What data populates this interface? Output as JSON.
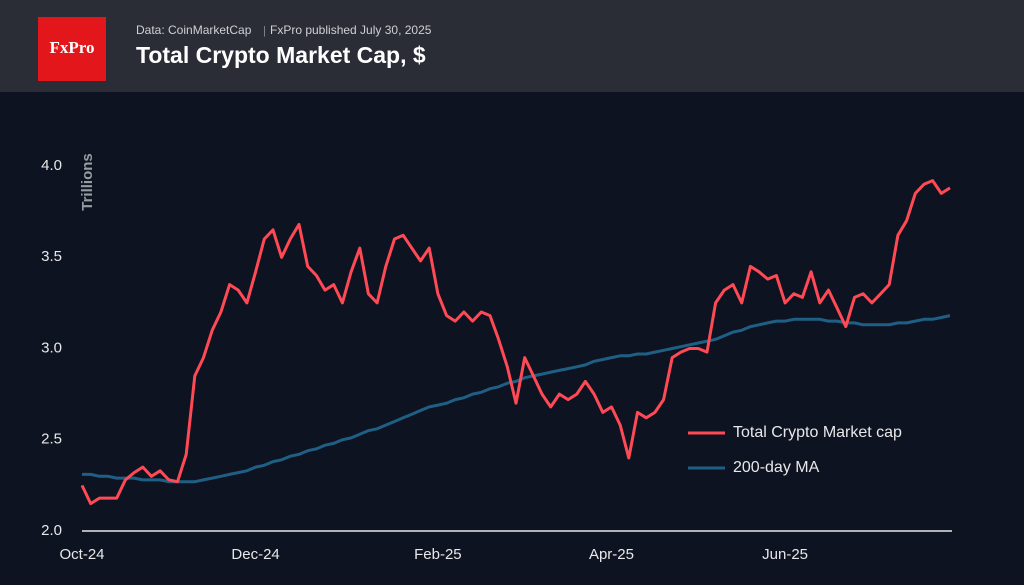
{
  "logo": "FxPro",
  "source": "Data: CoinMarketCap",
  "published": "FxPro published July 30, 2025",
  "chart_data": {
    "type": "line",
    "title": "Total Crypto Market Cap, $",
    "y_label": "Trillions",
    "categories": [
      "Oct-24",
      null,
      null,
      null,
      null,
      null,
      null,
      null,
      null,
      null,
      null,
      null,
      null,
      null,
      null,
      null,
      null,
      null,
      null,
      null,
      "Dec-24",
      null,
      null,
      null,
      null,
      null,
      null,
      null,
      null,
      null,
      null,
      null,
      null,
      null,
      null,
      null,
      null,
      null,
      null,
      null,
      null,
      "Feb-25",
      null,
      null,
      null,
      null,
      null,
      null,
      null,
      null,
      null,
      null,
      null,
      null,
      null,
      null,
      null,
      null,
      null,
      null,
      null,
      "Apr-25",
      null,
      null,
      null,
      null,
      null,
      null,
      null,
      null,
      null,
      null,
      null,
      null,
      null,
      null,
      null,
      null,
      null,
      null,
      null,
      "Jun-25",
      null,
      null,
      null,
      null,
      null,
      null,
      null,
      null,
      null,
      null,
      null,
      null,
      null,
      null,
      null,
      null,
      null,
      null,
      null
    ],
    "series": [
      {
        "name": "Total Crypto Market cap",
        "color": "#ff4a55",
        "values": [
          2.25,
          2.15,
          2.18,
          2.18,
          2.18,
          2.28,
          2.32,
          2.35,
          2.3,
          2.33,
          2.28,
          2.27,
          2.42,
          2.85,
          2.95,
          3.1,
          3.2,
          3.35,
          3.32,
          3.25,
          3.42,
          3.6,
          3.65,
          3.5,
          3.6,
          3.68,
          3.45,
          3.4,
          3.32,
          3.35,
          3.25,
          3.42,
          3.55,
          3.3,
          3.25,
          3.45,
          3.6,
          3.62,
          3.55,
          3.48,
          3.55,
          3.3,
          3.18,
          3.15,
          3.2,
          3.15,
          3.2,
          3.18,
          3.05,
          2.9,
          2.7,
          2.95,
          2.85,
          2.75,
          2.68,
          2.75,
          2.72,
          2.75,
          2.82,
          2.75,
          2.65,
          2.68,
          2.58,
          2.4,
          2.65,
          2.62,
          2.65,
          2.72,
          2.95,
          2.98,
          3.0,
          3.0,
          2.98,
          3.25,
          3.32,
          3.35,
          3.25,
          3.45,
          3.42,
          3.38,
          3.4,
          3.25,
          3.3,
          3.28,
          3.42,
          3.25,
          3.32,
          3.22,
          3.12,
          3.28,
          3.3,
          3.25,
          3.3,
          3.35,
          3.62,
          3.7,
          3.85,
          3.9,
          3.92,
          3.85,
          3.88
        ]
      },
      {
        "name": "200-day MA",
        "color": "#1f5f85",
        "values": [
          2.31,
          2.31,
          2.3,
          2.3,
          2.29,
          2.29,
          2.29,
          2.28,
          2.28,
          2.28,
          2.27,
          2.27,
          2.27,
          2.27,
          2.28,
          2.29,
          2.3,
          2.31,
          2.32,
          2.33,
          2.35,
          2.36,
          2.38,
          2.39,
          2.41,
          2.42,
          2.44,
          2.45,
          2.47,
          2.48,
          2.5,
          2.51,
          2.53,
          2.55,
          2.56,
          2.58,
          2.6,
          2.62,
          2.64,
          2.66,
          2.68,
          2.69,
          2.7,
          2.72,
          2.73,
          2.75,
          2.76,
          2.78,
          2.79,
          2.81,
          2.82,
          2.84,
          2.85,
          2.86,
          2.87,
          2.88,
          2.89,
          2.9,
          2.91,
          2.93,
          2.94,
          2.95,
          2.96,
          2.96,
          2.97,
          2.97,
          2.98,
          2.99,
          3.0,
          3.01,
          3.02,
          3.03,
          3.04,
          3.05,
          3.07,
          3.09,
          3.1,
          3.12,
          3.13,
          3.14,
          3.15,
          3.15,
          3.16,
          3.16,
          3.16,
          3.16,
          3.15,
          3.15,
          3.14,
          3.14,
          3.13,
          3.13,
          3.13,
          3.13,
          3.14,
          3.14,
          3.15,
          3.16,
          3.16,
          3.17,
          3.18
        ]
      }
    ],
    "ylim": [
      2,
      4.2
    ],
    "yticks": [
      {
        "value": 2,
        "label": "2.0"
      },
      2.5,
      {
        "value": 3,
        "label": "3.0"
      },
      3.5,
      {
        "value": 4,
        "label": "4.0"
      }
    ],
    "grid": false,
    "legend": "right"
  }
}
